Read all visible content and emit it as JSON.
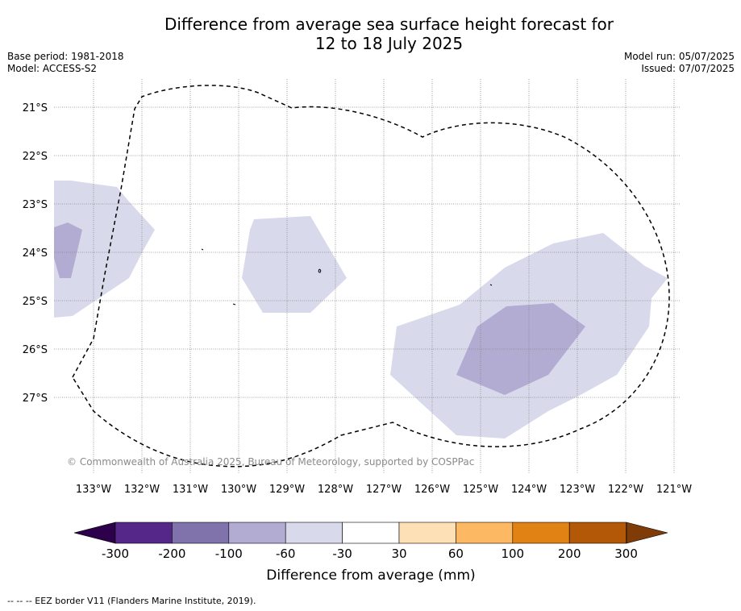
{
  "title_line1": "Difference from average sea surface height forecast for",
  "title_line2": "12 to 18 July 2025",
  "meta_left": [
    "Base period: 1981-2018",
    "Model: ACCESS-S2"
  ],
  "meta_right": [
    "Model run: 05/07/2025",
    "Issued: 07/07/2025"
  ],
  "copyright": "© Commonwealth of Australia 2025, Bureau of Meteorology, supported by COSPPac",
  "lat_labels": [
    "21°S",
    "22°S",
    "23°S",
    "24°S",
    "25°S",
    "26°S",
    "27°S"
  ],
  "lon_labels": [
    "133°W",
    "132°W",
    "131°W",
    "130°W",
    "129°W",
    "128°W",
    "127°W",
    "126°W",
    "125°W",
    "124°W",
    "123°W",
    "122°W",
    "121°W"
  ],
  "colorbar": {
    "label": "Difference from average (mm)",
    "ticks": [
      "-300",
      "-200",
      "-100",
      "-60",
      "-30",
      "30",
      "60",
      "100",
      "200",
      "300"
    ],
    "colors": [
      "#2d004b",
      "#542788",
      "#8073ac",
      "#b2abd2",
      "#d8daeb",
      "#ffffff",
      "#fee0b6",
      "#fdb863",
      "#e08214",
      "#b35806",
      "#7f3b08"
    ]
  },
  "footer": "--  --  -- EEZ border V11 (Flanders Marine Institute, 2019).",
  "colors": {
    "anomaly_light": "#d8daeb",
    "anomaly_medium": "#b2abd2",
    "grid": "#888888",
    "eez": "#000000"
  }
}
